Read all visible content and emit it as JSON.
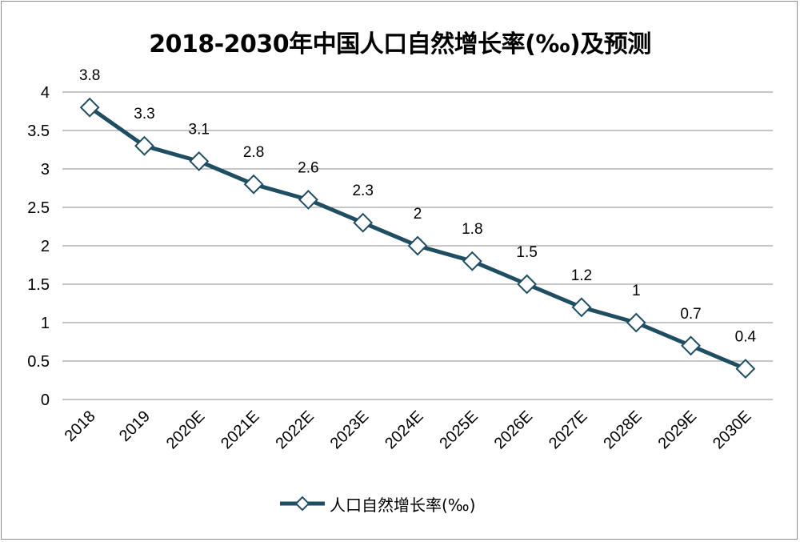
{
  "chart_data": {
    "type": "line",
    "title": "2018-2030年中国人口自然增长率(‰)及预测",
    "categories": [
      "2018",
      "2019",
      "2020E",
      "2021E",
      "2022E",
      "2023E",
      "2024E",
      "2025E",
      "2026E",
      "2027E",
      "2028E",
      "2029E",
      "2030E"
    ],
    "series": [
      {
        "name": "人口自然增长率(‰)",
        "values": [
          3.8,
          3.3,
          3.1,
          2.8,
          2.6,
          2.3,
          2,
          1.8,
          1.5,
          1.2,
          1,
          0.7,
          0.4
        ],
        "labels": [
          "3.8",
          "3.3",
          "3.1",
          "2.8",
          "2.6",
          "2.3",
          "2",
          "1.8",
          "1.5",
          "1.2",
          "1",
          "0.7",
          "0.4"
        ],
        "color": "#1f4e63",
        "marker": "diamond"
      }
    ],
    "ylim": [
      0,
      4
    ],
    "yticks": [
      "0",
      "0.5",
      "1",
      "1.5",
      "2",
      "2.5",
      "3",
      "3.5",
      "4"
    ],
    "xlabel": "",
    "ylabel": "",
    "grid": true,
    "legend_position": "bottom"
  }
}
